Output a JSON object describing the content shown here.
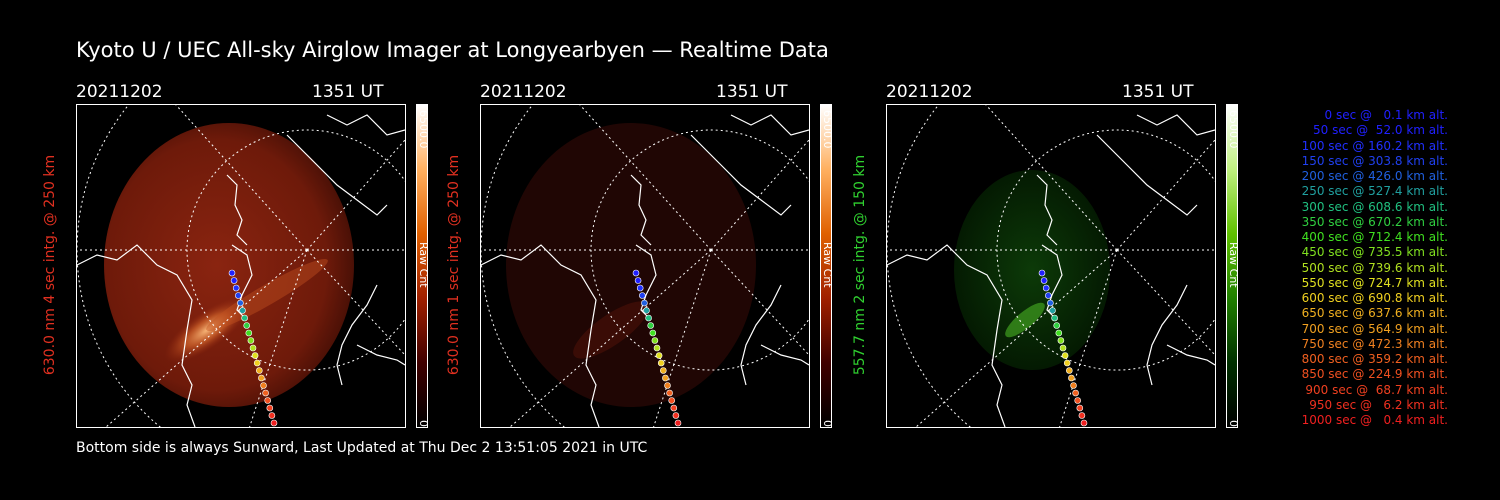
{
  "title": "Kyoto U / UEC All-sky Airglow Imager at Longyearbyen — Realtime Data",
  "footer": "Bottom side is always Sunward, Last Updated at Thu Dec  2 13:51:05 2021 in UTC",
  "panels": [
    {
      "date": "20211202",
      "time": "1351 UT",
      "side_label": "630.0 nm 4 sec intg. @ 250 km",
      "cbar_max": "6500.0",
      "cbar_unit": "Raw Cnt",
      "cbar_min": "0",
      "color": "#e03020"
    },
    {
      "date": "20211202",
      "time": "1351 UT",
      "side_label": "630.0 nm 1 sec intg. @ 250 km",
      "cbar_max": "6500.0",
      "cbar_unit": "Raw Cnt",
      "cbar_min": "0",
      "color": "#e03020"
    },
    {
      "date": "20211202",
      "time": "1351 UT",
      "side_label": "557.7 nm 2 sec intg. @ 150 km",
      "cbar_max": "6500.0",
      "cbar_unit": "Raw Cnt",
      "cbar_min": "0",
      "color": "#30d030"
    }
  ],
  "legend": [
    {
      "text": "0 sec @   0.1 km alt.",
      "color": "#2020ff"
    },
    {
      "text": "50 sec @  52.0 km alt.",
      "color": "#2020ff"
    },
    {
      "text": "100 sec @ 160.2 km alt.",
      "color": "#2030ff"
    },
    {
      "text": "150 sec @ 303.8 km alt.",
      "color": "#2040f0"
    },
    {
      "text": "200 sec @ 426.0 km alt.",
      "color": "#2060e0"
    },
    {
      "text": "250 sec @ 527.4 km alt.",
      "color": "#20a0a0"
    },
    {
      "text": "300 sec @ 608.6 km alt.",
      "color": "#20c080"
    },
    {
      "text": "350 sec @ 670.2 km alt.",
      "color": "#30d040"
    },
    {
      "text": "400 sec @ 712.4 km alt.",
      "color": "#40e020"
    },
    {
      "text": "450 sec @ 735.5 km alt.",
      "color": "#80e020"
    },
    {
      "text": "500 sec @ 739.6 km alt.",
      "color": "#b0e020"
    },
    {
      "text": "550 sec @ 724.7 km alt.",
      "color": "#e0e020"
    },
    {
      "text": "600 sec @ 690.8 km alt.",
      "color": "#f0d020"
    },
    {
      "text": "650 sec @ 637.6 km alt.",
      "color": "#f0b020"
    },
    {
      "text": "700 sec @ 564.9 km alt.",
      "color": "#f0a020"
    },
    {
      "text": "750 sec @ 472.3 km alt.",
      "color": "#f08020"
    },
    {
      "text": "800 sec @ 359.2 km alt.",
      "color": "#f06020"
    },
    {
      "text": "850 sec @ 224.9 km alt.",
      "color": "#f05020"
    },
    {
      "text": "900 sec @  68.7 km alt.",
      "color": "#f04020"
    },
    {
      "text": "950 sec @   6.2 km alt.",
      "color": "#f03020"
    },
    {
      "text": "1000 sec @   0.4 km alt.",
      "color": "#f02020"
    }
  ]
}
